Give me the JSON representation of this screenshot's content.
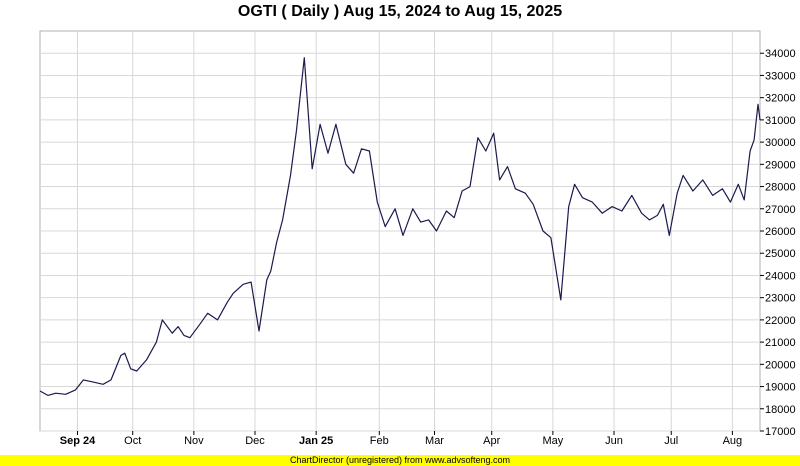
{
  "chart_data": {
    "type": "line",
    "title": "OGTI ( Daily ) Aug 15, 2024 to Aug 15, 2025",
    "x_tick_labels": [
      "Sep 24",
      "Oct",
      "Nov",
      "Dec",
      "Jan 25",
      "Feb",
      "Mar",
      "Apr",
      "May",
      "Jun",
      "Jul",
      "Aug"
    ],
    "y_tick_labels": [
      "17000",
      "18000",
      "19000",
      "20000",
      "21000",
      "22000",
      "23000",
      "24000",
      "25000",
      "26000",
      "27000",
      "28000",
      "29000",
      "30000",
      "31000",
      "32000",
      "33000",
      "34000"
    ],
    "ylim": [
      17000,
      35000
    ],
    "xlim": [
      "2024-08-15",
      "2025-08-15"
    ],
    "y_axis_position": "right",
    "grid": true,
    "line_color": "#1a1a4e",
    "series": [
      {
        "x": [
          "2024-08-15",
          "2024-08-19",
          "2024-08-23",
          "2024-08-28",
          "2024-09-02",
          "2024-09-06",
          "2024-09-11",
          "2024-09-16",
          "2024-09-20",
          "2024-09-25",
          "2024-09-27",
          "2024-09-30",
          "2024-10-03",
          "2024-10-08",
          "2024-10-13",
          "2024-10-16",
          "2024-10-21",
          "2024-10-24",
          "2024-10-27",
          "2024-10-30",
          "2024-11-04",
          "2024-11-08",
          "2024-11-13",
          "2024-11-18",
          "2024-11-21",
          "2024-11-26",
          "2024-11-30",
          "2024-12-04",
          "2024-12-08",
          "2024-12-10",
          "2024-12-13",
          "2024-12-16",
          "2024-12-20",
          "2024-12-23",
          "2024-12-27",
          "2024-12-31",
          "2025-01-04",
          "2025-01-08",
          "2025-01-12",
          "2025-01-17",
          "2025-01-21",
          "2025-01-25",
          "2025-01-29",
          "2025-02-02",
          "2025-02-06",
          "2025-02-11",
          "2025-02-15",
          "2025-02-20",
          "2025-02-24",
          "2025-02-28",
          "2025-03-04",
          "2025-03-09",
          "2025-03-13",
          "2025-03-17",
          "2025-03-21",
          "2025-03-25",
          "2025-03-29",
          "2025-04-02",
          "2025-04-05",
          "2025-04-09",
          "2025-04-13",
          "2025-04-18",
          "2025-04-22",
          "2025-04-27",
          "2025-05-01",
          "2025-05-06",
          "2025-05-10",
          "2025-05-13",
          "2025-05-17",
          "2025-05-22",
          "2025-05-27",
          "2025-06-01",
          "2025-06-06",
          "2025-06-11",
          "2025-06-16",
          "2025-06-20",
          "2025-06-24",
          "2025-06-27",
          "2025-06-30",
          "2025-07-04",
          "2025-07-07",
          "2025-07-12",
          "2025-07-17",
          "2025-07-22",
          "2025-07-27",
          "2025-07-31",
          "2025-08-04",
          "2025-08-07",
          "2025-08-10",
          "2025-08-12",
          "2025-08-14",
          "2025-08-15"
        ],
        "y": [
          18800,
          18600,
          18700,
          18650,
          18850,
          19300,
          19200,
          19100,
          19300,
          20400,
          20500,
          19800,
          19700,
          20200,
          21000,
          22000,
          21400,
          21700,
          21300,
          21200,
          21800,
          22300,
          22000,
          22800,
          23200,
          23600,
          23700,
          21500,
          23800,
          24200,
          25500,
          26500,
          28500,
          30500,
          33800,
          28800,
          30800,
          29500,
          30800,
          29000,
          28600,
          29700,
          29600,
          27300,
          26200,
          27000,
          25800,
          27000,
          26400,
          26500,
          26000,
          26900,
          26600,
          27800,
          28000,
          30200,
          29600,
          30400,
          28300,
          28900,
          27900,
          27700,
          27200,
          26000,
          25700,
          22900,
          27100,
          28100,
          27500,
          27300,
          26800,
          27100,
          26900,
          27600,
          26800,
          26500,
          26700,
          27200,
          25800,
          27700,
          28500,
          27800,
          28300,
          27600,
          27900,
          27300,
          28100,
          27400,
          29600,
          30100,
          31700,
          31000
        ]
      }
    ]
  },
  "footer_text": "ChartDirector (unregistered) from www.advsofteng.com"
}
